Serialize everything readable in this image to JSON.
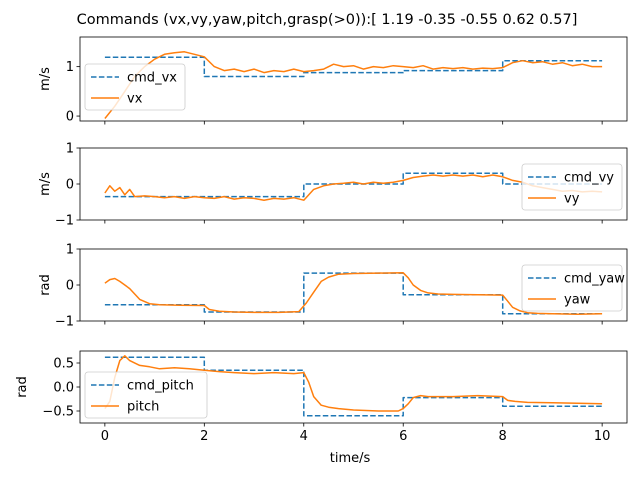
{
  "figure": {
    "title": "Commands (vx,vy,yaw,pitch,grasp(>0)):[ 1.19 -0.35 -0.55  0.62  0.57]",
    "xlabel": "time/s"
  },
  "colors": {
    "cmd": "#1f77b4",
    "actual": "#ff7f0e"
  },
  "chart_data": [
    {
      "type": "line",
      "ylabel": "m/s",
      "xlim": [
        -0.5,
        10.5
      ],
      "ylim": [
        -0.1,
        1.6
      ],
      "yticks": [
        0,
        1
      ],
      "xticks": [
        0,
        2,
        4,
        6,
        8,
        10
      ],
      "legend_position": "upper-left",
      "series": [
        {
          "name": "cmd_vx",
          "style": "dashed",
          "x": [
            0,
            2,
            2,
            4,
            4,
            6,
            6,
            8,
            8,
            10
          ],
          "y": [
            1.19,
            1.19,
            0.8,
            0.8,
            0.88,
            0.88,
            0.92,
            0.92,
            1.12,
            1.12
          ]
        },
        {
          "name": "vx",
          "style": "solid",
          "x": [
            0,
            0.2,
            0.4,
            0.6,
            0.8,
            1.0,
            1.2,
            1.4,
            1.6,
            1.8,
            2.0,
            2.2,
            2.4,
            2.6,
            2.8,
            3.0,
            3.2,
            3.4,
            3.6,
            3.8,
            4.0,
            4.2,
            4.4,
            4.6,
            4.8,
            5.0,
            5.2,
            5.4,
            5.6,
            5.8,
            6.0,
            6.2,
            6.4,
            6.6,
            6.8,
            7.0,
            7.2,
            7.4,
            7.6,
            7.8,
            8.0,
            8.2,
            8.4,
            8.6,
            8.8,
            9.0,
            9.2,
            9.4,
            9.6,
            9.8,
            10.0
          ],
          "y": [
            -0.05,
            0.2,
            0.5,
            0.8,
            1.0,
            1.15,
            1.25,
            1.28,
            1.3,
            1.25,
            1.2,
            1.0,
            0.92,
            0.95,
            0.9,
            0.95,
            0.88,
            0.92,
            0.9,
            0.95,
            0.9,
            0.92,
            0.95,
            1.05,
            1.0,
            1.02,
            0.95,
            1.0,
            0.98,
            1.02,
            1.0,
            0.98,
            1.02,
            0.95,
            0.98,
            0.96,
            0.98,
            0.95,
            0.97,
            0.96,
            0.98,
            1.08,
            1.12,
            1.08,
            1.1,
            1.05,
            1.08,
            1.02,
            1.05,
            1.0,
            1.0
          ]
        }
      ]
    },
    {
      "type": "line",
      "ylabel": "m/s",
      "xlim": [
        -0.5,
        10.5
      ],
      "ylim": [
        -1,
        1
      ],
      "yticks": [
        -1,
        0,
        1
      ],
      "xticks": [
        0,
        2,
        4,
        6,
        8,
        10
      ],
      "legend_position": "right",
      "series": [
        {
          "name": "cmd_vy",
          "style": "dashed",
          "x": [
            0,
            4,
            4,
            6,
            6,
            8,
            8,
            10
          ],
          "y": [
            -0.35,
            -0.35,
            0.0,
            0.0,
            0.3,
            0.3,
            0.0,
            0.0
          ]
        },
        {
          "name": "vy",
          "style": "solid",
          "x": [
            0,
            0.1,
            0.2,
            0.3,
            0.4,
            0.5,
            0.6,
            0.8,
            1.0,
            1.2,
            1.4,
            1.6,
            1.8,
            2.0,
            2.2,
            2.4,
            2.6,
            2.8,
            3.0,
            3.2,
            3.4,
            3.6,
            3.8,
            4.0,
            4.2,
            4.4,
            4.6,
            4.8,
            5.0,
            5.2,
            5.4,
            5.6,
            5.8,
            6.0,
            6.2,
            6.4,
            6.6,
            6.8,
            7.0,
            7.2,
            7.4,
            7.6,
            7.8,
            8.0,
            8.2,
            8.4,
            8.6,
            8.8,
            9.0,
            9.2,
            9.4,
            9.6,
            9.8,
            10.0
          ],
          "y": [
            -0.25,
            -0.05,
            -0.2,
            -0.1,
            -0.3,
            -0.15,
            -0.35,
            -0.33,
            -0.35,
            -0.38,
            -0.35,
            -0.4,
            -0.35,
            -0.38,
            -0.4,
            -0.35,
            -0.42,
            -0.38,
            -0.4,
            -0.45,
            -0.4,
            -0.42,
            -0.38,
            -0.45,
            -0.15,
            -0.05,
            0.0,
            0.02,
            0.05,
            0.0,
            0.05,
            0.02,
            0.05,
            0.1,
            0.18,
            0.22,
            0.25,
            0.22,
            0.25,
            0.22,
            0.25,
            0.2,
            0.25,
            0.2,
            0.1,
            0.05,
            -0.05,
            -0.1,
            -0.15,
            -0.2,
            -0.18,
            -0.22,
            -0.2,
            -0.22
          ]
        }
      ]
    },
    {
      "type": "line",
      "ylabel": "rad",
      "xlim": [
        -0.5,
        10.5
      ],
      "ylim": [
        -1,
        1
      ],
      "yticks": [
        -1,
        0,
        1
      ],
      "xticks": [
        0,
        2,
        4,
        6,
        8,
        10
      ],
      "legend_position": "right",
      "series": [
        {
          "name": "cmd_yaw",
          "style": "dashed",
          "x": [
            0,
            2,
            2,
            4,
            4,
            6,
            6,
            8,
            8,
            10
          ],
          "y": [
            -0.55,
            -0.55,
            -0.75,
            -0.75,
            0.33,
            0.33,
            -0.27,
            -0.27,
            -0.8,
            -0.8
          ]
        },
        {
          "name": "yaw",
          "style": "solid",
          "x": [
            0,
            0.1,
            0.2,
            0.3,
            0.5,
            0.7,
            0.9,
            1.1,
            1.5,
            2.0,
            2.1,
            2.3,
            2.6,
            3.0,
            3.5,
            3.9,
            4.05,
            4.2,
            4.35,
            4.5,
            4.7,
            5.0,
            5.5,
            6.0,
            6.1,
            6.2,
            6.35,
            6.5,
            6.7,
            7.0,
            7.5,
            8.0,
            8.1,
            8.2,
            8.35,
            8.5,
            8.7,
            9.0,
            9.5,
            10.0
          ],
          "y": [
            0.05,
            0.15,
            0.18,
            0.1,
            -0.1,
            -0.4,
            -0.52,
            -0.55,
            -0.56,
            -0.57,
            -0.68,
            -0.73,
            -0.75,
            -0.76,
            -0.76,
            -0.74,
            -0.5,
            -0.2,
            0.1,
            0.22,
            0.3,
            0.32,
            0.33,
            0.34,
            0.2,
            0.0,
            -0.15,
            -0.22,
            -0.25,
            -0.26,
            -0.27,
            -0.28,
            -0.45,
            -0.62,
            -0.72,
            -0.77,
            -0.79,
            -0.8,
            -0.81,
            -0.8
          ]
        }
      ]
    },
    {
      "type": "line",
      "ylabel": "rad",
      "xlim": [
        -0.5,
        10.5
      ],
      "ylim": [
        -0.75,
        0.75
      ],
      "yticks": [
        -0.5,
        0.0,
        0.5
      ],
      "ytick_labels": [
        "−0.5",
        "0.0",
        "0.5"
      ],
      "xticks": [
        0,
        2,
        4,
        6,
        8,
        10
      ],
      "xtick_labels": [
        "0",
        "2",
        "4",
        "6",
        "8",
        "10"
      ],
      "legend_position": "lower-left",
      "series": [
        {
          "name": "cmd_pitch",
          "style": "dashed",
          "x": [
            0,
            2,
            2,
            4,
            4,
            6,
            6,
            8,
            8,
            10
          ],
          "y": [
            0.62,
            0.62,
            0.35,
            0.35,
            -0.6,
            -0.6,
            -0.22,
            -0.22,
            -0.4,
            -0.4
          ]
        },
        {
          "name": "pitch",
          "style": "solid",
          "x": [
            0,
            0.1,
            0.2,
            0.3,
            0.4,
            0.5,
            0.7,
            0.9,
            1.1,
            1.4,
            1.7,
            2.0,
            2.3,
            2.6,
            3.0,
            3.4,
            3.8,
            4.0,
            4.1,
            4.2,
            4.35,
            4.5,
            4.7,
            5.0,
            5.5,
            5.9,
            6.0,
            6.1,
            6.2,
            6.35,
            6.5,
            7.0,
            7.5,
            8.0,
            8.1,
            8.25,
            8.5,
            9.0,
            9.5,
            10.0
          ],
          "y": [
            -0.45,
            -0.3,
            0.2,
            0.55,
            0.65,
            0.55,
            0.45,
            0.42,
            0.38,
            0.4,
            0.38,
            0.35,
            0.32,
            0.3,
            0.28,
            0.3,
            0.28,
            0.3,
            0.1,
            -0.2,
            -0.38,
            -0.42,
            -0.45,
            -0.48,
            -0.5,
            -0.5,
            -0.45,
            -0.35,
            -0.22,
            -0.18,
            -0.2,
            -0.2,
            -0.18,
            -0.2,
            -0.28,
            -0.3,
            -0.32,
            -0.33,
            -0.34,
            -0.35
          ]
        }
      ]
    }
  ]
}
